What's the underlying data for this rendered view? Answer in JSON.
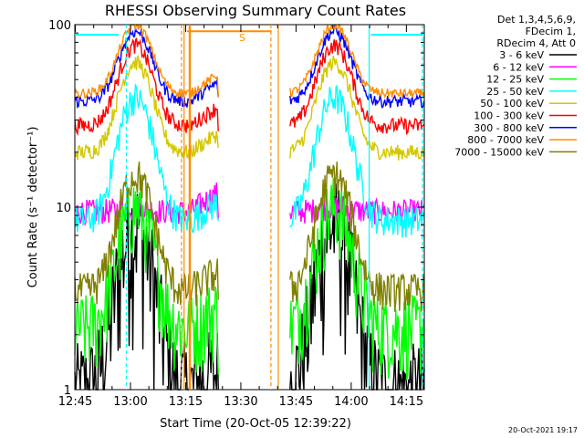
{
  "chart_data": {
    "type": "line",
    "title": "RHESSI Observing Summary Count Rates",
    "xlabel": "Start Time (20-Oct-05 12:39:22)",
    "ylabel": "Count Rate (s⁻¹ detector⁻¹)",
    "y_scale": "log",
    "ylim": [
      1,
      100
    ],
    "x_ticks": [
      "12:45",
      "13:00",
      "13:15",
      "13:30",
      "13:45",
      "14:00",
      "14:15"
    ],
    "y_ticks": [
      "1",
      "10",
      "100"
    ],
    "info_lines": [
      "Det 1,3,4,5,6,9,",
      "FDecim 1,",
      "RDecim 4, Att 0"
    ],
    "footer": "20-Oct-2021 19:17",
    "annotation": "S",
    "grid": false,
    "legend_position": "top-right",
    "series": [
      {
        "name": "3 - 6 keV",
        "color": "#000000",
        "base": 1.0,
        "peak": 8,
        "noise": 0.4
      },
      {
        "name": "6 - 12 keV",
        "color": "#ff00ff",
        "base": 9.5,
        "peak": 10,
        "noise": 0.08
      },
      {
        "name": "12 - 25 keV",
        "color": "#00ff00",
        "base": 2.2,
        "peak": 10,
        "noise": 0.25
      },
      {
        "name": "25 - 50 keV",
        "color": "#00ffff",
        "base": 8.5,
        "peak": 40,
        "noise": 0.1
      },
      {
        "name": "50 - 100 keV",
        "color": "#d4c800",
        "base": 20,
        "peak": 62,
        "noise": 0.05
      },
      {
        "name": "100 - 300 keV",
        "color": "#ff0000",
        "base": 28,
        "peak": 77,
        "noise": 0.05
      },
      {
        "name": "300 - 800 keV",
        "color": "#0000ff",
        "base": 38,
        "peak": 92,
        "noise": 0.04
      },
      {
        "name": "800 - 7000 keV",
        "color": "#ff8c00",
        "base": 42,
        "peak": 100,
        "noise": 0.03
      },
      {
        "name": "7000 - 15000 keV",
        "color": "#808000",
        "base": 3.5,
        "peak": 15,
        "noise": 0.12
      }
    ]
  }
}
